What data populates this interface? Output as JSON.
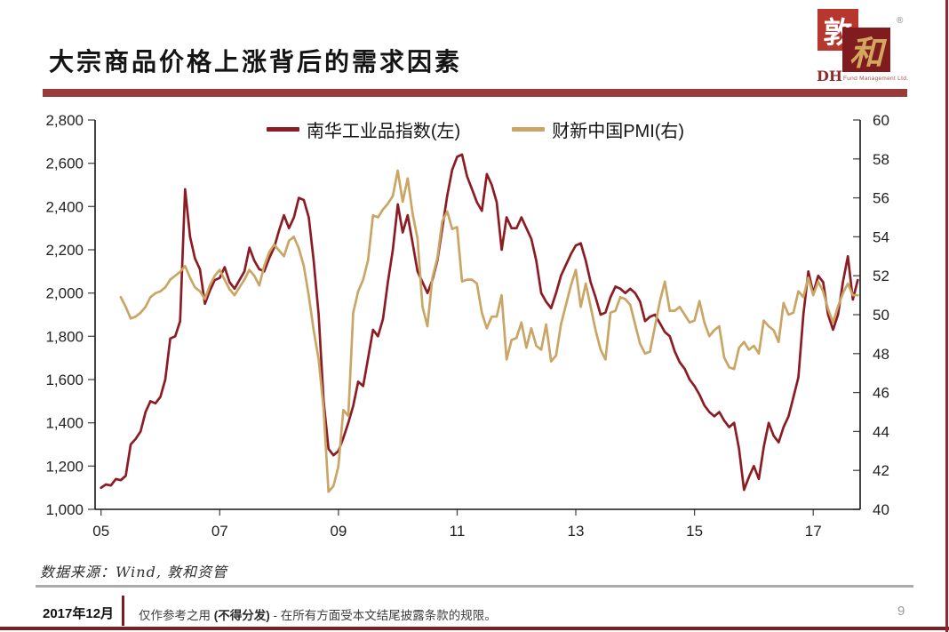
{
  "slide": {
    "title": "大宗商品价格上涨背后的需求因素",
    "page_number": "9",
    "accent_color": "#9a3a3a"
  },
  "logo": {
    "char_back": "敦",
    "char_front": "和",
    "registered_mark": "®",
    "initials": "DH",
    "company": "Fund Management Ltd.",
    "back_square_color": "#b7372e",
    "front_square_color": "#801b1f",
    "gold_color": "#d2a85e"
  },
  "chart_data": {
    "type": "line",
    "title": "",
    "grid": false,
    "legend_position": "top-center",
    "x_ticks": [
      "05",
      "07",
      "09",
      "11",
      "13",
      "15",
      "17"
    ],
    "x_tick_years": [
      2005,
      2007,
      2009,
      2011,
      2013,
      2015,
      2017
    ],
    "x_range": [
      2004.9,
      2017.79
    ],
    "left_axis": {
      "min": 1000,
      "max": 2800,
      "step": 200,
      "labels": [
        "1,000",
        "1,200",
        "1,400",
        "1,600",
        "1,800",
        "2,000",
        "2,200",
        "2,400",
        "2,600",
        "2,800"
      ]
    },
    "right_axis": {
      "min": 40,
      "max": 60,
      "step": 2,
      "labels": [
        "40",
        "42",
        "44",
        "46",
        "48",
        "50",
        "52",
        "54",
        "56",
        "58",
        "60"
      ]
    },
    "series": [
      {
        "name": "南华工业品指数(左)",
        "axis": "left",
        "color": "#8c1c24",
        "start_year": 2005.0,
        "frequency": "monthly",
        "values": [
          1100,
          1115,
          1110,
          1140,
          1135,
          1155,
          1300,
          1325,
          1360,
          1450,
          1500,
          1490,
          1520,
          1600,
          1790,
          1800,
          1870,
          2480,
          2260,
          2160,
          2110,
          1950,
          2010,
          2060,
          2070,
          2120,
          2050,
          2020,
          2060,
          2100,
          2210,
          2150,
          2110,
          2100,
          2160,
          2210,
          2290,
          2360,
          2300,
          2350,
          2440,
          2430,
          2350,
          2150,
          1900,
          1500,
          1280,
          1250,
          1270,
          1330,
          1400,
          1480,
          1590,
          1570,
          1700,
          1830,
          1800,
          1880,
          2050,
          2200,
          2410,
          2280,
          2360,
          2230,
          2100,
          2050,
          2000,
          2060,
          2150,
          2300,
          2450,
          2570,
          2630,
          2640,
          2540,
          2480,
          2420,
          2380,
          2550,
          2500,
          2420,
          2200,
          2350,
          2300,
          2300,
          2350,
          2300,
          2250,
          2150,
          2000,
          1960,
          1930,
          2000,
          2080,
          2130,
          2180,
          2220,
          2230,
          2150,
          2050,
          1980,
          1900,
          1910,
          1980,
          2030,
          2020,
          2000,
          2020,
          2000,
          1960,
          1870,
          1890,
          1900,
          1860,
          1820,
          1800,
          1730,
          1680,
          1650,
          1600,
          1570,
          1530,
          1480,
          1450,
          1430,
          1450,
          1410,
          1380,
          1400,
          1280,
          1090,
          1150,
          1200,
          1140,
          1290,
          1400,
          1340,
          1310,
          1380,
          1430,
          1520,
          1610,
          1900,
          2100,
          2000,
          2080,
          2050,
          1900,
          1830,
          1900,
          2050,
          2170,
          1970,
          2060
        ]
      },
      {
        "name": "财新中国PMI(右)",
        "axis": "right",
        "color": "#c9a566",
        "start_year": 2005.333,
        "frequency": "monthly",
        "values": [
          50.9,
          50.4,
          49.8,
          49.9,
          50.1,
          50.4,
          50.9,
          51.1,
          51.2,
          51.4,
          51.8,
          52.0,
          52.2,
          52.5,
          51.9,
          51.4,
          51.2,
          50.8,
          51.5,
          52.0,
          52.3,
          51.8,
          51.3,
          51.0,
          51.4,
          51.8,
          52.3,
          52.0,
          51.5,
          52.5,
          53.2,
          53.6,
          53.3,
          53.0,
          53.8,
          54.0,
          53.4,
          52.5,
          51.0,
          49.2,
          47.7,
          45.2,
          40.9,
          41.2,
          42.2,
          45.1,
          44.8,
          50.1,
          51.2,
          51.8,
          52.8,
          55.1,
          55.0,
          55.4,
          55.7,
          56.1,
          57.4,
          55.8,
          57.0,
          55.2,
          53.9,
          50.4,
          49.4,
          51.9,
          52.9,
          54.8,
          55.3,
          54.4,
          54.5,
          51.7,
          51.8,
          51.8,
          51.6,
          50.1,
          49.3,
          49.9,
          49.9,
          51.0,
          47.7,
          48.7,
          48.8,
          49.6,
          48.3,
          49.3,
          48.4,
          48.2,
          49.5,
          47.6,
          47.9,
          49.5,
          50.5,
          51.5,
          52.3,
          50.4,
          51.6,
          50.4,
          49.2,
          48.2,
          47.7,
          50.1,
          50.2,
          50.9,
          50.8,
          50.5,
          49.5,
          48.5,
          48.0,
          48.1,
          49.4,
          50.7,
          51.7,
          50.2,
          50.2,
          50.4,
          50.0,
          49.6,
          49.7,
          50.7,
          49.6,
          48.9,
          49.2,
          49.4,
          47.8,
          47.3,
          47.2,
          48.3,
          48.6,
          48.2,
          48.4,
          48.0,
          49.7,
          49.4,
          49.2,
          48.6,
          50.6,
          50.0,
          50.1,
          51.2,
          50.9,
          51.9,
          51.0,
          51.7,
          51.2,
          50.3,
          49.6,
          50.4,
          51.1,
          51.6,
          51.0,
          51.0
        ]
      }
    ]
  },
  "source_note": "数据来源：Wind, 敦和资管",
  "footer": {
    "date": "2017年12月",
    "disclaimer_prefix": "仅作参考之用 ",
    "disclaimer_bold": "(不得分发)",
    "disclaimer_suffix": " - 在所有方面受本文结尾披露条款的规限。"
  }
}
